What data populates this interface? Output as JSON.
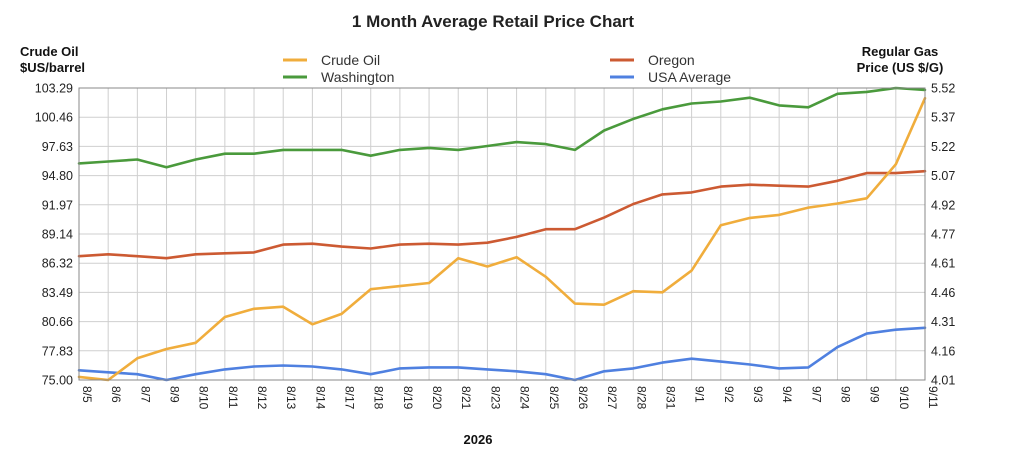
{
  "chart_data": {
    "type": "line",
    "title": "1 Month Average Retail Price Chart",
    "y_left_label_line1": "Crude Oil",
    "y_left_label_line2": "$US/barrel",
    "y_right_label_line1": "Regular Gas",
    "y_right_label_line2": "Price (US $/G)",
    "xlabel": "2026",
    "left_axis": {
      "ticks": [
        "103.29",
        "100.46",
        "97.63",
        "94.80",
        "91.97",
        "89.14",
        "86.32",
        "83.49",
        "80.66",
        "77.83",
        "75.00"
      ],
      "min": 75.0,
      "max": 103.29
    },
    "right_axis": {
      "ticks": [
        "5.52",
        "5.37",
        "5.22",
        "5.07",
        "4.92",
        "4.77",
        "4.61",
        "4.46",
        "4.31",
        "4.16",
        "4.01"
      ],
      "min": 4.01,
      "max": 5.52
    },
    "grid": true,
    "legend_position": "top",
    "categories": [
      "8/5",
      "8/6",
      "8/7",
      "8/9",
      "8/10",
      "8/11",
      "8/12",
      "8/13",
      "8/14",
      "8/17",
      "8/18",
      "8/19",
      "8/20",
      "8/21",
      "8/23",
      "8/24",
      "8/25",
      "8/26",
      "8/27",
      "8/28",
      "8/31",
      "9/1",
      "9/2",
      "9/3",
      "9/4",
      "9/7",
      "9/8",
      "9/9",
      "9/10",
      "9/11"
    ],
    "series": [
      {
        "name": "Crude Oil",
        "axis": "left",
        "color": "#f0ad3c",
        "values": [
          75.3,
          75.0,
          77.1,
          78.0,
          78.6,
          81.1,
          81.9,
          82.1,
          80.4,
          81.4,
          83.8,
          84.1,
          84.4,
          86.8,
          86.0,
          86.9,
          85.0,
          82.4,
          82.3,
          83.6,
          83.5,
          85.6,
          90.0,
          90.7,
          91.0,
          91.7,
          92.1,
          92.6,
          95.9,
          102.3
        ]
      },
      {
        "name": "Washington",
        "axis": "right",
        "color": "#4a9a3c",
        "values": [
          5.13,
          5.14,
          5.15,
          5.11,
          5.15,
          5.18,
          5.18,
          5.2,
          5.2,
          5.2,
          5.17,
          5.2,
          5.21,
          5.2,
          5.22,
          5.24,
          5.23,
          5.2,
          5.3,
          5.36,
          5.41,
          5.44,
          5.45,
          5.47,
          5.43,
          5.42,
          5.49,
          5.5,
          5.52,
          5.51
        ]
      },
      {
        "name": "Oregon",
        "axis": "right",
        "color": "#cc5a32",
        "values": [
          4.65,
          4.66,
          4.65,
          4.64,
          4.66,
          4.665,
          4.67,
          4.71,
          4.715,
          4.7,
          4.69,
          4.71,
          4.715,
          4.71,
          4.72,
          4.75,
          4.79,
          4.79,
          4.85,
          4.92,
          4.97,
          4.98,
          5.01,
          5.02,
          5.015,
          5.01,
          5.04,
          5.08,
          5.08,
          5.09
        ]
      },
      {
        "name": "USA Average",
        "axis": "right",
        "color": "#4f80e0",
        "values": [
          4.06,
          4.05,
          4.04,
          4.01,
          4.04,
          4.065,
          4.08,
          4.085,
          4.08,
          4.065,
          4.04,
          4.07,
          4.075,
          4.075,
          4.065,
          4.055,
          4.04,
          4.01,
          4.055,
          4.07,
          4.1,
          4.12,
          4.105,
          4.09,
          4.07,
          4.075,
          4.18,
          4.25,
          4.27,
          4.28
        ]
      }
    ]
  }
}
